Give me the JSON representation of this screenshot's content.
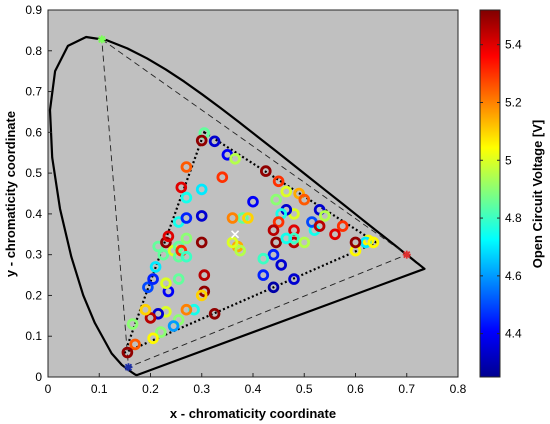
{
  "chart_data": {
    "type": "scatter",
    "xlabel": "x - chromaticity coordinate",
    "ylabel": "y - chromaticity coordinate",
    "xlim": [
      0,
      0.8
    ],
    "ylim": [
      0,
      0.9
    ],
    "xticks": [
      "0",
      "0.1",
      "0.2",
      "0.3",
      "0.4",
      "0.5",
      "0.6",
      "0.7",
      "0.8"
    ],
    "yticks": [
      "0",
      "0.1",
      "0.2",
      "0.3",
      "0.4",
      "0.5",
      "0.6",
      "0.7",
      "0.8",
      "0.9"
    ],
    "background_color": "#c0c0c0",
    "grid": false,
    "colorbar": {
      "label": "Open Circuit Voltage [V]",
      "range": [
        4.25,
        5.52
      ],
      "ticks": [
        "4.4",
        "4.6",
        "4.8",
        "5",
        "5.2",
        "5.4"
      ],
      "colormap": "jet"
    },
    "spectral_locus": [
      [
        0.1741,
        0.005
      ],
      [
        0.1733,
        0.0048
      ],
      [
        0.1726,
        0.0048
      ],
      [
        0.1714,
        0.0051
      ],
      [
        0.1689,
        0.0069
      ],
      [
        0.1644,
        0.0109
      ],
      [
        0.1566,
        0.0177
      ],
      [
        0.144,
        0.0297
      ],
      [
        0.1241,
        0.0578
      ],
      [
        0.0913,
        0.1327
      ],
      [
        0.0687,
        0.2007
      ],
      [
        0.0454,
        0.295
      ],
      [
        0.0235,
        0.4127
      ],
      [
        0.0082,
        0.5384
      ],
      [
        0.0039,
        0.6548
      ],
      [
        0.0139,
        0.7502
      ],
      [
        0.0389,
        0.812
      ],
      [
        0.0743,
        0.8338
      ],
      [
        0.1142,
        0.8262
      ],
      [
        0.1547,
        0.8059
      ],
      [
        0.1929,
        0.7816
      ],
      [
        0.2296,
        0.7543
      ],
      [
        0.2658,
        0.7243
      ],
      [
        0.3016,
        0.6923
      ],
      [
        0.3373,
        0.6589
      ],
      [
        0.3731,
        0.6245
      ],
      [
        0.4087,
        0.5896
      ],
      [
        0.4441,
        0.5547
      ],
      [
        0.4788,
        0.5202
      ],
      [
        0.5125,
        0.4866
      ],
      [
        0.5448,
        0.4544
      ],
      [
        0.5752,
        0.4242
      ],
      [
        0.6029,
        0.3965
      ],
      [
        0.627,
        0.3725
      ],
      [
        0.6482,
        0.3514
      ],
      [
        0.6658,
        0.334
      ],
      [
        0.6801,
        0.3197
      ],
      [
        0.6915,
        0.3083
      ],
      [
        0.7006,
        0.2993
      ],
      [
        0.7079,
        0.292
      ],
      [
        0.714,
        0.2859
      ],
      [
        0.719,
        0.2809
      ],
      [
        0.723,
        0.277
      ],
      [
        0.726,
        0.274
      ],
      [
        0.7347,
        0.2653
      ]
    ],
    "reference_gamut": [
      [
        0.105,
        0.828
      ],
      [
        0.7,
        0.3
      ],
      [
        0.157,
        0.024
      ]
    ],
    "device_gamut": [
      [
        0.305,
        0.6
      ],
      [
        0.64,
        0.33
      ],
      [
        0.15,
        0.06
      ]
    ],
    "white_point": [
      0.365,
      0.35
    ],
    "primary_markers": [
      {
        "x": 0.105,
        "y": 0.828,
        "color": "#7cff5a"
      },
      {
        "x": 0.7,
        "y": 0.3,
        "color": "#e03030"
      },
      {
        "x": 0.157,
        "y": 0.024,
        "color": "#1c2fa8"
      }
    ],
    "points": [
      {
        "x": 0.305,
        "y": 0.598,
        "v": 4.85
      },
      {
        "x": 0.3,
        "y": 0.58,
        "v": 5.5
      },
      {
        "x": 0.325,
        "y": 0.578,
        "v": 4.35
      },
      {
        "x": 0.35,
        "y": 0.545,
        "v": 4.4
      },
      {
        "x": 0.365,
        "y": 0.535,
        "v": 4.95
      },
      {
        "x": 0.425,
        "y": 0.505,
        "v": 5.5
      },
      {
        "x": 0.45,
        "y": 0.48,
        "v": 5.3
      },
      {
        "x": 0.465,
        "y": 0.455,
        "v": 5.0
      },
      {
        "x": 0.49,
        "y": 0.45,
        "v": 5.15
      },
      {
        "x": 0.5,
        "y": 0.435,
        "v": 5.25
      },
      {
        "x": 0.53,
        "y": 0.41,
        "v": 4.35
      },
      {
        "x": 0.54,
        "y": 0.395,
        "v": 4.95
      },
      {
        "x": 0.575,
        "y": 0.37,
        "v": 5.3
      },
      {
        "x": 0.625,
        "y": 0.335,
        "v": 5.05
      },
      {
        "x": 0.6,
        "y": 0.31,
        "v": 5.05
      },
      {
        "x": 0.62,
        "y": 0.33,
        "v": 4.7
      },
      {
        "x": 0.635,
        "y": 0.33,
        "v": 5.05
      },
      {
        "x": 0.6,
        "y": 0.33,
        "v": 5.5
      },
      {
        "x": 0.56,
        "y": 0.35,
        "v": 5.4
      },
      {
        "x": 0.52,
        "y": 0.36,
        "v": 4.75
      },
      {
        "x": 0.515,
        "y": 0.38,
        "v": 4.5
      },
      {
        "x": 0.48,
        "y": 0.4,
        "v": 5.0
      },
      {
        "x": 0.465,
        "y": 0.41,
        "v": 4.35
      },
      {
        "x": 0.445,
        "y": 0.435,
        "v": 4.9
      },
      {
        "x": 0.455,
        "y": 0.4,
        "v": 4.75
      },
      {
        "x": 0.45,
        "y": 0.38,
        "v": 5.3
      },
      {
        "x": 0.44,
        "y": 0.36,
        "v": 5.45
      },
      {
        "x": 0.48,
        "y": 0.36,
        "v": 5.4
      },
      {
        "x": 0.48,
        "y": 0.33,
        "v": 5.45
      },
      {
        "x": 0.53,
        "y": 0.37,
        "v": 5.45
      },
      {
        "x": 0.48,
        "y": 0.34,
        "v": 4.8
      },
      {
        "x": 0.5,
        "y": 0.33,
        "v": 4.95
      },
      {
        "x": 0.445,
        "y": 0.33,
        "v": 5.5
      },
      {
        "x": 0.465,
        "y": 0.34,
        "v": 4.75
      },
      {
        "x": 0.44,
        "y": 0.3,
        "v": 4.45
      },
      {
        "x": 0.455,
        "y": 0.275,
        "v": 4.35
      },
      {
        "x": 0.42,
        "y": 0.25,
        "v": 4.45
      },
      {
        "x": 0.42,
        "y": 0.29,
        "v": 4.8
      },
      {
        "x": 0.44,
        "y": 0.22,
        "v": 4.3
      },
      {
        "x": 0.48,
        "y": 0.24,
        "v": 4.35
      },
      {
        "x": 0.4,
        "y": 0.43,
        "v": 4.4
      },
      {
        "x": 0.38,
        "y": 0.39,
        "v": 4.85
      },
      {
        "x": 0.39,
        "y": 0.39,
        "v": 5.1
      },
      {
        "x": 0.37,
        "y": 0.32,
        "v": 5.15
      },
      {
        "x": 0.375,
        "y": 0.31,
        "v": 4.95
      },
      {
        "x": 0.36,
        "y": 0.33,
        "v": 5.0
      },
      {
        "x": 0.36,
        "y": 0.39,
        "v": 5.2
      },
      {
        "x": 0.34,
        "y": 0.49,
        "v": 5.3
      },
      {
        "x": 0.3,
        "y": 0.46,
        "v": 4.7
      },
      {
        "x": 0.3,
        "y": 0.395,
        "v": 4.35
      },
      {
        "x": 0.3,
        "y": 0.33,
        "v": 5.5
      },
      {
        "x": 0.305,
        "y": 0.25,
        "v": 5.45
      },
      {
        "x": 0.305,
        "y": 0.21,
        "v": 5.5
      },
      {
        "x": 0.3,
        "y": 0.2,
        "v": 5.1
      },
      {
        "x": 0.325,
        "y": 0.155,
        "v": 5.5
      },
      {
        "x": 0.285,
        "y": 0.165,
        "v": 4.75
      },
      {
        "x": 0.27,
        "y": 0.165,
        "v": 5.2
      },
      {
        "x": 0.255,
        "y": 0.14,
        "v": 4.9
      },
      {
        "x": 0.245,
        "y": 0.125,
        "v": 4.6
      },
      {
        "x": 0.22,
        "y": 0.11,
        "v": 4.9
      },
      {
        "x": 0.205,
        "y": 0.095,
        "v": 5.05
      },
      {
        "x": 0.23,
        "y": 0.16,
        "v": 5.0
      },
      {
        "x": 0.215,
        "y": 0.155,
        "v": 4.35
      },
      {
        "x": 0.2,
        "y": 0.145,
        "v": 5.45
      },
      {
        "x": 0.235,
        "y": 0.21,
        "v": 4.4
      },
      {
        "x": 0.23,
        "y": 0.23,
        "v": 5.0
      },
      {
        "x": 0.19,
        "y": 0.165,
        "v": 5.1
      },
      {
        "x": 0.195,
        "y": 0.22,
        "v": 4.5
      },
      {
        "x": 0.205,
        "y": 0.24,
        "v": 4.45
      },
      {
        "x": 0.21,
        "y": 0.27,
        "v": 4.7
      },
      {
        "x": 0.225,
        "y": 0.3,
        "v": 4.85
      },
      {
        "x": 0.215,
        "y": 0.32,
        "v": 4.85
      },
      {
        "x": 0.23,
        "y": 0.33,
        "v": 5.5
      },
      {
        "x": 0.235,
        "y": 0.345,
        "v": 5.4
      },
      {
        "x": 0.245,
        "y": 0.31,
        "v": 5.0
      },
      {
        "x": 0.255,
        "y": 0.32,
        "v": 4.85
      },
      {
        "x": 0.255,
        "y": 0.295,
        "v": 4.85
      },
      {
        "x": 0.26,
        "y": 0.31,
        "v": 5.3
      },
      {
        "x": 0.27,
        "y": 0.295,
        "v": 4.8
      },
      {
        "x": 0.27,
        "y": 0.34,
        "v": 4.9
      },
      {
        "x": 0.255,
        "y": 0.38,
        "v": 4.75
      },
      {
        "x": 0.27,
        "y": 0.39,
        "v": 4.45
      },
      {
        "x": 0.26,
        "y": 0.465,
        "v": 5.4
      },
      {
        "x": 0.27,
        "y": 0.515,
        "v": 5.25
      },
      {
        "x": 0.27,
        "y": 0.44,
        "v": 4.75
      },
      {
        "x": 0.255,
        "y": 0.24,
        "v": 4.85
      },
      {
        "x": 0.17,
        "y": 0.08,
        "v": 5.25
      },
      {
        "x": 0.155,
        "y": 0.06,
        "v": 5.5
      },
      {
        "x": 0.165,
        "y": 0.13,
        "v": 4.9
      }
    ]
  }
}
